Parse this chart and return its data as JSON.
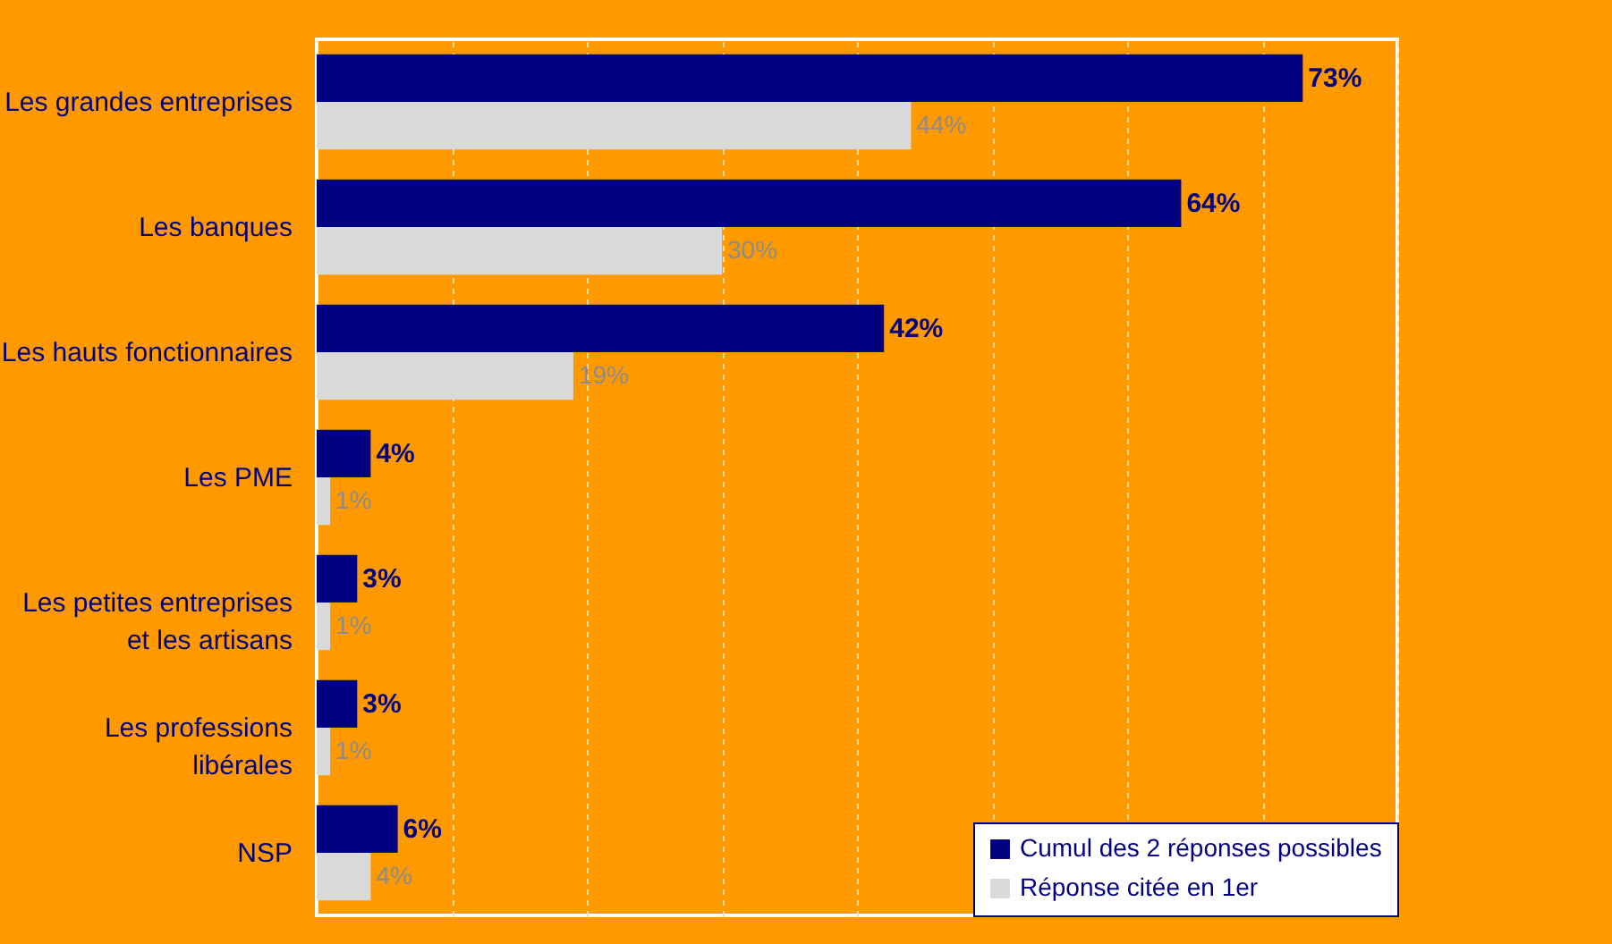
{
  "chart_data": {
    "type": "bar",
    "orientation": "horizontal",
    "categories": [
      "Les grandes entreprises",
      "Les banques",
      "Les hauts fonctionnaires",
      "Les PME",
      "Les petites entreprises et les artisans",
      "Les professions libérales",
      "NSP"
    ],
    "series": [
      {
        "name": "Cumul des 2 réponses possibles",
        "color": "#000080",
        "values": [
          73,
          64,
          42,
          4,
          3,
          3,
          6
        ],
        "value_labels": [
          "73%",
          "64%",
          "42%",
          "4%",
          "3%",
          "3%",
          "6%"
        ]
      },
      {
        "name": "Réponse citée en 1er",
        "color": "#d9d9d9",
        "values": [
          44,
          30,
          19,
          1,
          1,
          1,
          4
        ],
        "value_labels": [
          "44%",
          "30%",
          "19%",
          "1%",
          "1%",
          "1%",
          "4%"
        ]
      }
    ],
    "xlim": [
      0,
      80
    ],
    "xticks": [
      {
        "value": 0,
        "label": null
      },
      {
        "value": 10,
        "label": null
      },
      {
        "value": 20,
        "label": null
      },
      {
        "value": 30,
        "label": null
      },
      {
        "value": 40,
        "label": null
      },
      {
        "value": 50,
        "label": null
      },
      {
        "value": 60,
        "label": null
      },
      {
        "value": 70,
        "label": null
      },
      {
        "value": 80,
        "label": null
      }
    ],
    "grid": "x",
    "legend": "bottom right",
    "tick_labels": "y"
  }
}
